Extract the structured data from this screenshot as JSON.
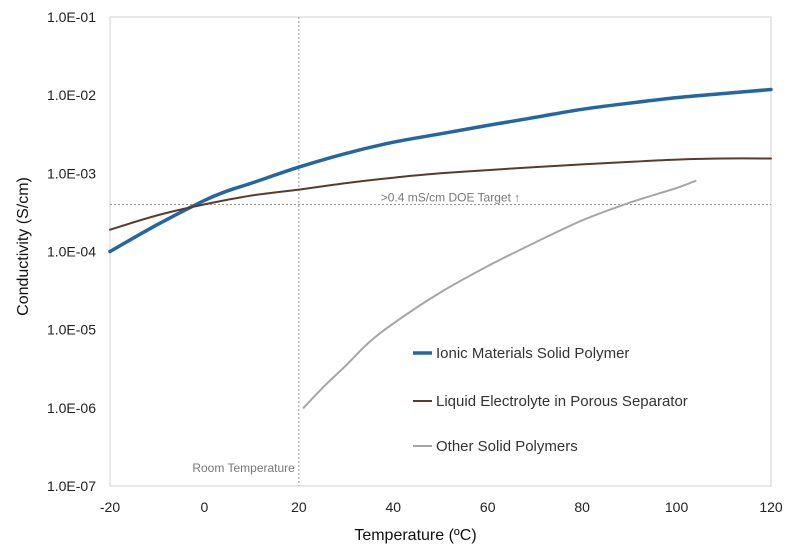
{
  "chart_data": {
    "type": "line",
    "xlabel": "Temperature (ºC)",
    "ylabel": "Conductivity (S/cm)",
    "xlim": [
      -20,
      120
    ],
    "ylim": [
      1e-07,
      0.1
    ],
    "yscale": "log",
    "grid": false,
    "legend_position": "bottom-right",
    "x_ticks": [
      "-20",
      "0",
      "20",
      "40",
      "60",
      "80",
      "100",
      "120"
    ],
    "y_ticks": [
      "1.0E-07",
      "1.0E-06",
      "1.0E-05",
      "1.0E-04",
      "1.0E-03",
      "1.0E-02",
      "1.0E-01"
    ],
    "series": [
      {
        "name": "Ionic Materials Solid Polymer",
        "color": "#2466a0",
        "line_width": "thick",
        "x": [
          -20,
          -10,
          0,
          5,
          10,
          20,
          30,
          40,
          50,
          60,
          70,
          80,
          90,
          100,
          110,
          120
        ],
        "y": [
          0.0001,
          0.00022,
          0.00045,
          0.0006,
          0.00075,
          0.0012,
          0.0018,
          0.0025,
          0.0032,
          0.0041,
          0.0052,
          0.0066,
          0.0079,
          0.0093,
          0.0105,
          0.0118
        ]
      },
      {
        "name": "Liquid Electrolyte in Porous Separator",
        "color": "#5b3a2e",
        "line_width": "medium",
        "x": [
          -20,
          -10,
          0,
          10,
          20,
          30,
          40,
          50,
          60,
          70,
          80,
          90,
          100,
          110,
          120
        ],
        "y": [
          0.00019,
          0.00029,
          0.0004,
          0.00052,
          0.00062,
          0.00075,
          0.00088,
          0.001,
          0.0011,
          0.0012,
          0.0013,
          0.0014,
          0.0015,
          0.00155,
          0.00155
        ]
      },
      {
        "name": "Other Solid Polymers",
        "color": "#a6a6a6",
        "line_width": "medium",
        "x": [
          21,
          25,
          30,
          35,
          40,
          50,
          60,
          70,
          80,
          90,
          100,
          104
        ],
        "y": [
          1e-06,
          1.8e-06,
          3.5e-06,
          7e-06,
          1.2e-05,
          3e-05,
          6.5e-05,
          0.00013,
          0.00025,
          0.00042,
          0.00065,
          0.0008
        ]
      }
    ],
    "annotations": {
      "target_line_value": 0.0004,
      "target_label": ">0.4 mS/cm DOE Target ↑",
      "room_temp_value": 20,
      "room_temp_label": "Room Temperature"
    }
  }
}
